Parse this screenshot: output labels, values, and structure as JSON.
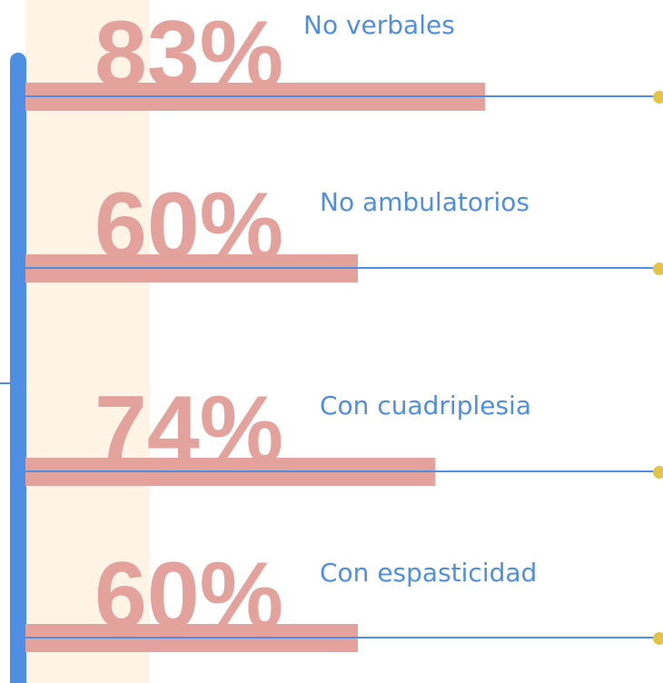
{
  "chart_data": {
    "type": "bar",
    "categories": [
      "No verbales",
      "No ambulatorios",
      "Con cuadriplesia",
      "Con espasticidad"
    ],
    "values": [
      83,
      60,
      74,
      60
    ],
    "value_labels": [
      "83%",
      "60%",
      "74%",
      "60%"
    ],
    "color": "#e3a29c"
  }
}
